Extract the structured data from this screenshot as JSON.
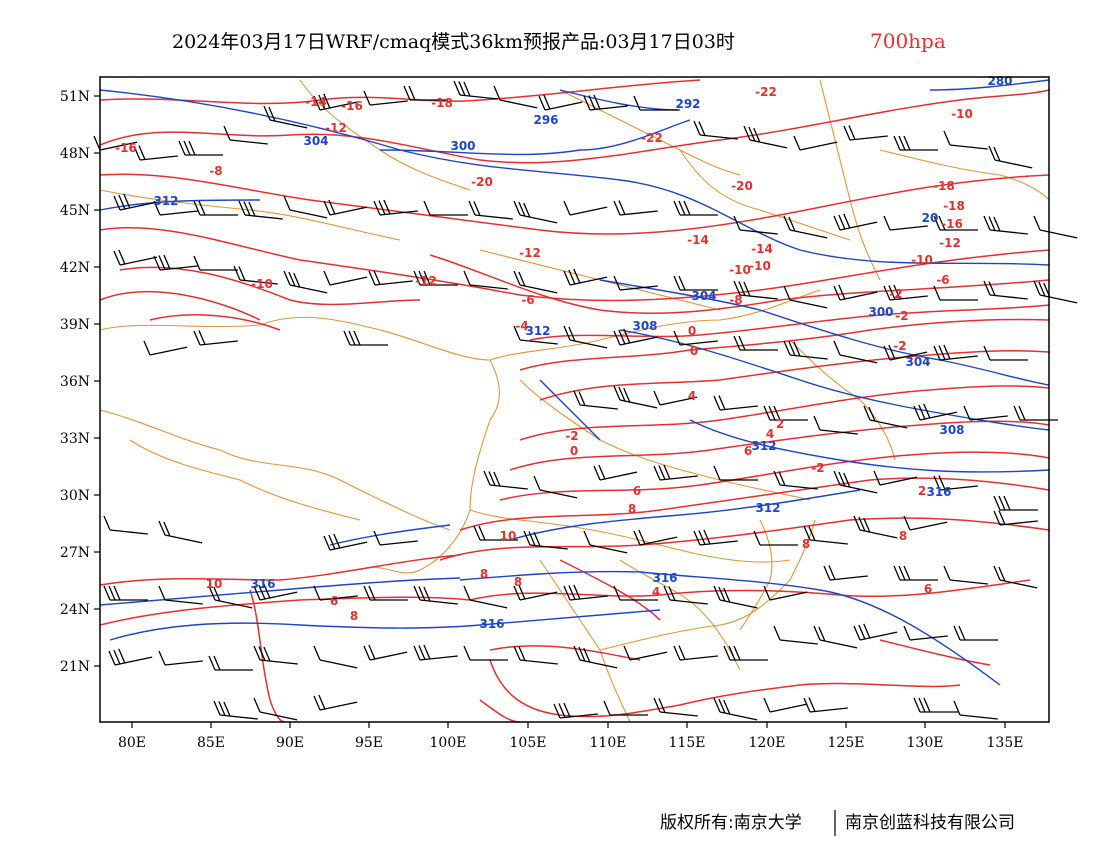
{
  "title": {
    "main": "2024年03月17日WRF/cmaq模式36km预报产品:03月17日03时",
    "level": "700hpa"
  },
  "axes": {
    "lat_labels": [
      "51N",
      "48N",
      "45N",
      "42N",
      "39N",
      "36N",
      "33N",
      "30N",
      "27N",
      "24N",
      "21N"
    ],
    "lon_labels": [
      "80E",
      "85E",
      "90E",
      "95E",
      "100E",
      "105E",
      "110E",
      "115E",
      "120E",
      "125E",
      "130E",
      "135E"
    ]
  },
  "colors": {
    "temperature_contours": "#e53030",
    "height_contours": "#1d45c8",
    "wind_barbs": "#000000",
    "boundaries": "#e0963c",
    "level_text": "#e8302e"
  },
  "temperature_labels": [
    "-14",
    "-16",
    "-12",
    "-18",
    "-22",
    "-22",
    "-10",
    "-8",
    "-16",
    "-20",
    "-20",
    "-18",
    "-18",
    "-16",
    "-14",
    "-14",
    "-12",
    "-12",
    "-10",
    "-10",
    "-10",
    "-10",
    "-12",
    "-8",
    "-6",
    "-6",
    "-4",
    "-2",
    "-2",
    "-2",
    "0",
    "0",
    "-2",
    "2",
    "4",
    "4",
    "0",
    "6",
    "6",
    "-2",
    "2",
    "8",
    "8",
    "8",
    "10",
    "8",
    "8",
    "4",
    "10",
    "6",
    "8",
    "6"
  ],
  "height_labels": [
    "292",
    "296",
    "300",
    "304",
    "312",
    "280",
    "20",
    "304",
    "300",
    "308",
    "312",
    "304",
    "308",
    "312",
    "312",
    "316",
    "316",
    "316",
    "316"
  ],
  "copyright": {
    "left": "版权所有:南京大学",
    "right": "南京创蓝科技有限公司"
  }
}
